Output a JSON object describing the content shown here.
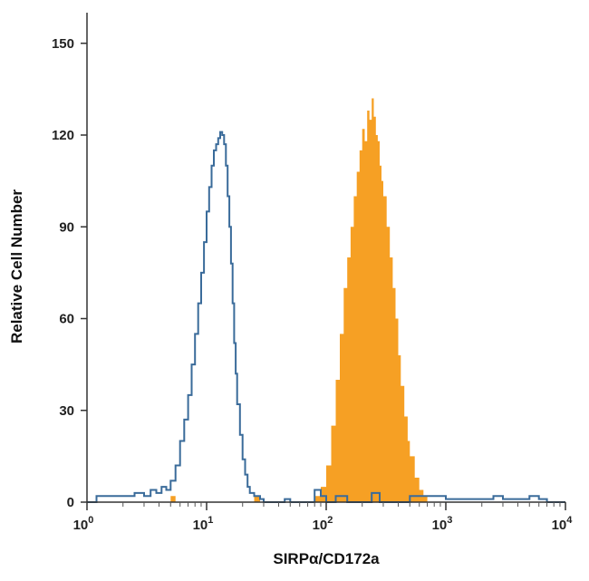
{
  "chart_data": {
    "type": "histogram",
    "title": "",
    "xlabel": "SIRPα/CD172a",
    "ylabel": "Relative Cell Number",
    "x_scale": "log",
    "xlim": [
      1,
      10000
    ],
    "ylim": [
      0,
      160
    ],
    "y_ticks": [
      0,
      30,
      60,
      90,
      120,
      150
    ],
    "y_tick_labels": [
      "0",
      "30",
      "60",
      "90",
      "120",
      "150"
    ],
    "x_ticks": [
      1,
      10,
      100,
      1000,
      10000
    ],
    "x_tick_labels": [
      {
        "base": "10",
        "exp": "0"
      },
      {
        "base": "10",
        "exp": "1"
      },
      {
        "base": "10",
        "exp": "2"
      },
      {
        "base": "10",
        "exp": "3"
      },
      {
        "base": "10",
        "exp": "4"
      }
    ],
    "grid": false,
    "series": [
      {
        "style": "outline",
        "color": "#3a6b9a",
        "points": [
          [
            1,
            0
          ],
          [
            1.2,
            2
          ],
          [
            1.5,
            2
          ],
          [
            2,
            2
          ],
          [
            2.5,
            3
          ],
          [
            3,
            2
          ],
          [
            3.4,
            4
          ],
          [
            3.8,
            3
          ],
          [
            4.2,
            5
          ],
          [
            4.6,
            4
          ],
          [
            5,
            7
          ],
          [
            5.5,
            12
          ],
          [
            6,
            20
          ],
          [
            6.5,
            27
          ],
          [
            7,
            35
          ],
          [
            7.5,
            45
          ],
          [
            8,
            55
          ],
          [
            8.5,
            65
          ],
          [
            9,
            75
          ],
          [
            9.5,
            85
          ],
          [
            10,
            95
          ],
          [
            10.5,
            103
          ],
          [
            11,
            110
          ],
          [
            11.5,
            115
          ],
          [
            12,
            117
          ],
          [
            12.5,
            119
          ],
          [
            13,
            121
          ],
          [
            13.5,
            120
          ],
          [
            14,
            117
          ],
          [
            14.5,
            110
          ],
          [
            15,
            100
          ],
          [
            15.5,
            90
          ],
          [
            16,
            78
          ],
          [
            16.5,
            65
          ],
          [
            17,
            52
          ],
          [
            17.5,
            42
          ],
          [
            18,
            32
          ],
          [
            19,
            22
          ],
          [
            20,
            14
          ],
          [
            21,
            9
          ],
          [
            22,
            5
          ],
          [
            23,
            3
          ],
          [
            25,
            2
          ],
          [
            28,
            1
          ],
          [
            30,
            0
          ],
          [
            35,
            0
          ],
          [
            40,
            0
          ],
          [
            45,
            1
          ],
          [
            50,
            0
          ],
          [
            55,
            0
          ],
          [
            60,
            0
          ],
          [
            70,
            0
          ],
          [
            80,
            4
          ],
          [
            90,
            2
          ],
          [
            100,
            0
          ],
          [
            120,
            2
          ],
          [
            150,
            0
          ],
          [
            200,
            0
          ],
          [
            240,
            3
          ],
          [
            280,
            0
          ],
          [
            400,
            0
          ],
          [
            500,
            2
          ],
          [
            700,
            2
          ],
          [
            1000,
            1
          ],
          [
            1500,
            1
          ],
          [
            2000,
            1
          ],
          [
            2500,
            2
          ],
          [
            3000,
            1
          ],
          [
            4000,
            1
          ],
          [
            5000,
            2
          ],
          [
            6000,
            1
          ],
          [
            7000,
            0
          ],
          [
            10000,
            0
          ]
        ]
      },
      {
        "style": "filled",
        "color": "#f6a024",
        "points": [
          [
            1,
            0
          ],
          [
            2,
            0
          ],
          [
            4.5,
            0
          ],
          [
            5,
            2
          ],
          [
            5.5,
            0
          ],
          [
            20,
            0
          ],
          [
            25,
            2
          ],
          [
            28,
            0
          ],
          [
            60,
            0
          ],
          [
            70,
            0
          ],
          [
            80,
            2
          ],
          [
            90,
            5
          ],
          [
            100,
            12
          ],
          [
            110,
            25
          ],
          [
            120,
            40
          ],
          [
            130,
            55
          ],
          [
            140,
            70
          ],
          [
            150,
            80
          ],
          [
            160,
            90
          ],
          [
            170,
            100
          ],
          [
            180,
            108
          ],
          [
            190,
            115
          ],
          [
            200,
            122
          ],
          [
            210,
            118
          ],
          [
            220,
            128
          ],
          [
            230,
            125
          ],
          [
            240,
            132
          ],
          [
            250,
            126
          ],
          [
            260,
            120
          ],
          [
            270,
            118
          ],
          [
            280,
            110
          ],
          [
            290,
            105
          ],
          [
            300,
            100
          ],
          [
            320,
            90
          ],
          [
            340,
            80
          ],
          [
            360,
            70
          ],
          [
            380,
            60
          ],
          [
            400,
            48
          ],
          [
            420,
            38
          ],
          [
            450,
            28
          ],
          [
            480,
            20
          ],
          [
            500,
            15
          ],
          [
            550,
            8
          ],
          [
            600,
            4
          ],
          [
            650,
            2
          ],
          [
            700,
            0
          ],
          [
            10000,
            0
          ]
        ]
      }
    ]
  }
}
